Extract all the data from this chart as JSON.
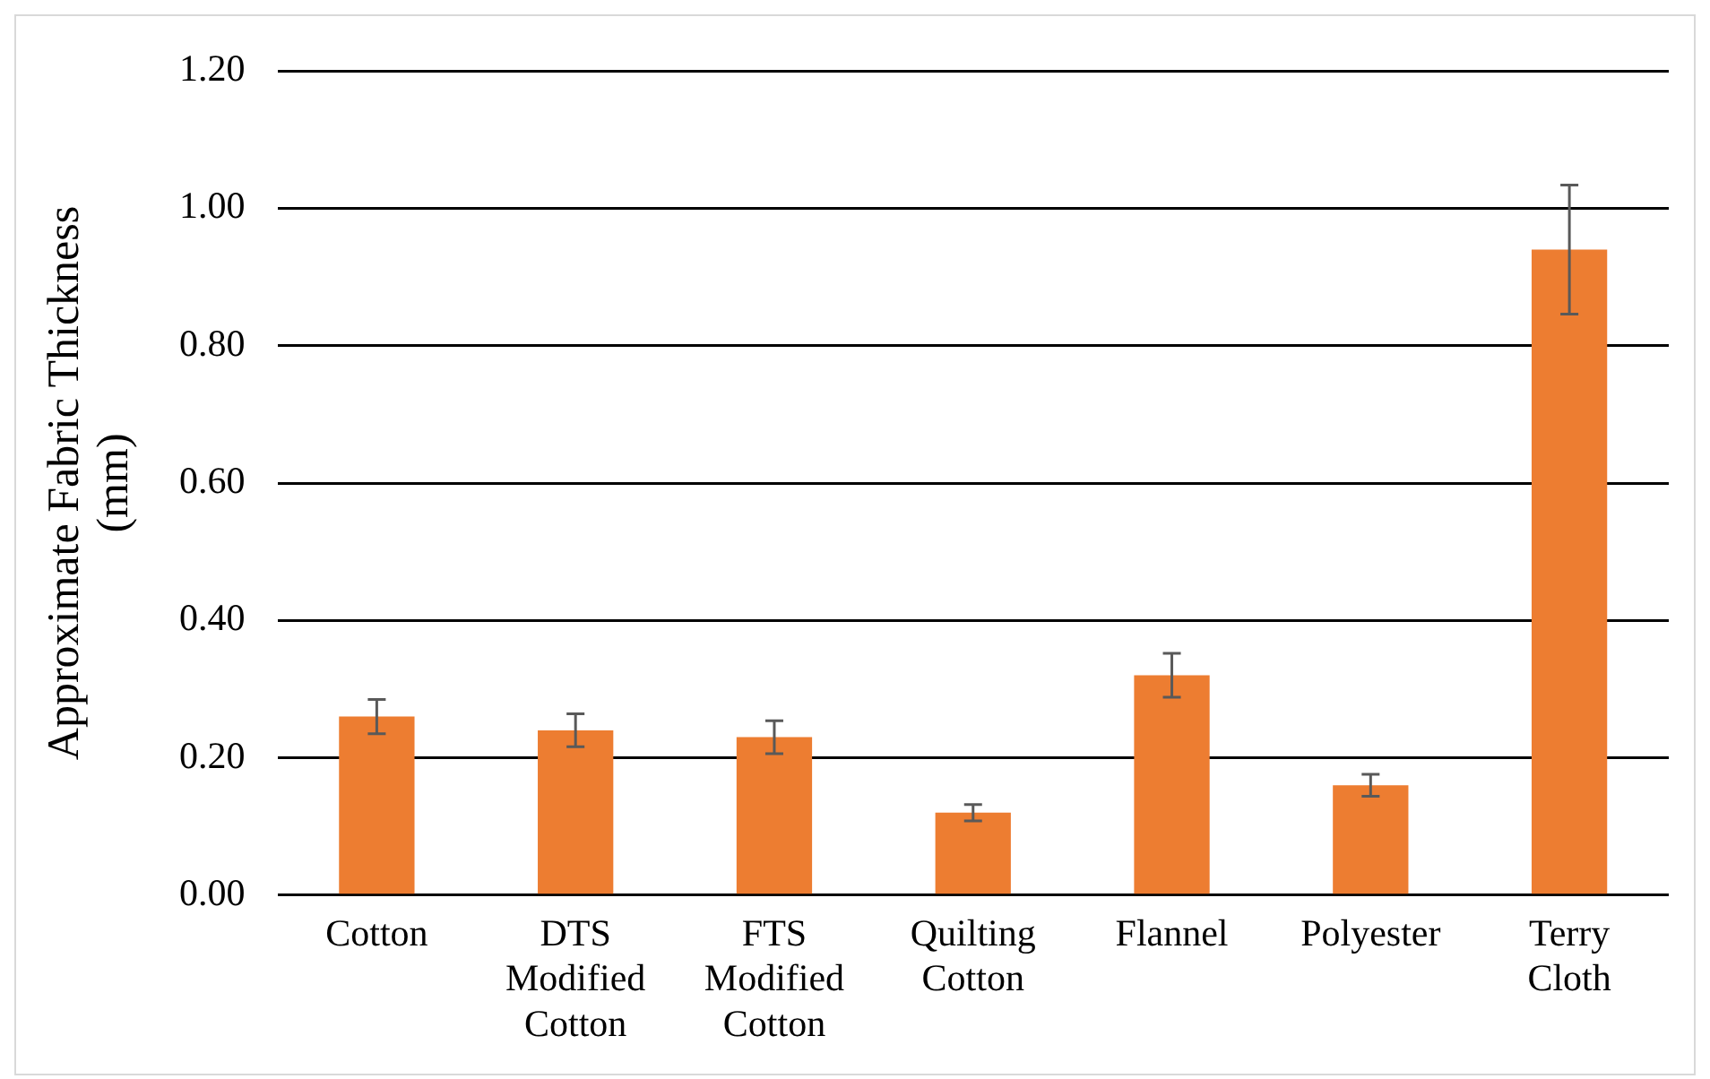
{
  "chart_data": {
    "type": "bar",
    "ylabel": "Approximate Fabric Thickness (mm)",
    "categories": [
      "Cotton",
      "DTS Modified Cotton",
      "FTS Modified Cotton",
      "Quilting Cotton",
      "Flannel",
      "Polyester",
      "Terry Cloth"
    ],
    "values": [
      0.26,
      0.24,
      0.23,
      0.12,
      0.32,
      0.16,
      0.94
    ],
    "errors": [
      0.025,
      0.024,
      0.024,
      0.012,
      0.032,
      0.016,
      0.094
    ],
    "color": "#ed7d31",
    "ylim": [
      0,
      1.2
    ],
    "yticks": [
      {
        "value": 0,
        "label": "0.00"
      },
      {
        "value": 0.2,
        "label": "0.20"
      },
      {
        "value": 0.4,
        "label": "0.40"
      },
      {
        "value": 0.6,
        "label": "0.60"
      },
      {
        "value": 0.8,
        "label": "0.80"
      },
      {
        "value": 1,
        "label": "1.00"
      },
      {
        "value": 1.2,
        "label": "1.20"
      }
    ],
    "grid": "y",
    "legend": false
  }
}
